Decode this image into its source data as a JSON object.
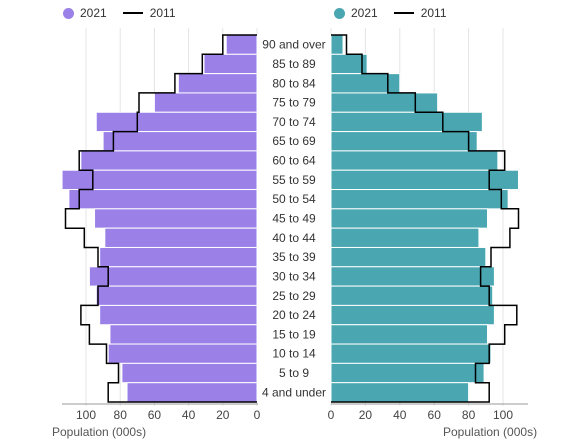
{
  "chart_data": [
    {
      "type": "bar",
      "orientation": "horizontal",
      "side": "left",
      "categories": [
        "90 and over",
        "85 to 89",
        "80 to 84",
        "75 to 79",
        "70 to 74",
        "65 to 69",
        "60 to 64",
        "55 to 59",
        "50 to 54",
        "45 to 49",
        "40 to 44",
        "35 to 39",
        "30 to 34",
        "25 to 29",
        "20 to 24",
        "15 to 19",
        "10 to 14",
        "5 to 9",
        "4 and under"
      ],
      "series": [
        {
          "name": "2021",
          "kind": "bar",
          "color": "#9b80e8",
          "values": [
            18,
            31,
            46,
            60,
            94,
            90,
            103,
            114,
            110,
            95,
            89,
            92,
            98,
            94,
            92,
            86,
            87,
            79,
            76
          ]
        },
        {
          "name": "2011",
          "kind": "step-line",
          "color": "#000000",
          "values": [
            20,
            32,
            48,
            69,
            70,
            84,
            104,
            96,
            104,
            112,
            101,
            93,
            87,
            93,
            103,
            98,
            88,
            81,
            87
          ]
        }
      ],
      "xlabel": "Population (000s)",
      "xticks": [
        100,
        80,
        60,
        40,
        20,
        0
      ],
      "xlim": [
        0,
        115
      ],
      "grid": true,
      "legend": "top-left"
    },
    {
      "type": "bar",
      "orientation": "horizontal",
      "side": "right",
      "categories": [
        "90 and over",
        "85 to 89",
        "80 to 84",
        "75 to 79",
        "70 to 74",
        "65 to 69",
        "60 to 64",
        "55 to 59",
        "50 to 54",
        "45 to 49",
        "40 to 44",
        "35 to 39",
        "30 to 34",
        "25 to 29",
        "20 to 24",
        "15 to 19",
        "10 to 14",
        "5 to 9",
        "4 and under"
      ],
      "series": [
        {
          "name": "2021",
          "kind": "bar",
          "color": "#4aa7b2",
          "values": [
            7,
            21,
            40,
            62,
            88,
            85,
            97,
            109,
            103,
            91,
            86,
            90,
            95,
            94,
            95,
            91,
            93,
            89,
            80
          ]
        },
        {
          "name": "2011",
          "kind": "step-line",
          "color": "#000000",
          "values": [
            9,
            18,
            33,
            49,
            65,
            80,
            101,
            92,
            99,
            109,
            104,
            93,
            87,
            92,
            108,
            101,
            92,
            84,
            92
          ]
        }
      ],
      "xlabel": "Population (000s)",
      "xticks": [
        0,
        20,
        40,
        60,
        80,
        100
      ],
      "xlim": [
        0,
        115
      ],
      "grid": true,
      "legend": "top-right"
    }
  ],
  "legend": {
    "left": {
      "bar_label": "2021",
      "line_label": "2011",
      "color": "#9b80e8"
    },
    "right": {
      "bar_label": "2021",
      "line_label": "2011",
      "color": "#4aa7b2"
    }
  },
  "axis_title": "Population (000s)"
}
